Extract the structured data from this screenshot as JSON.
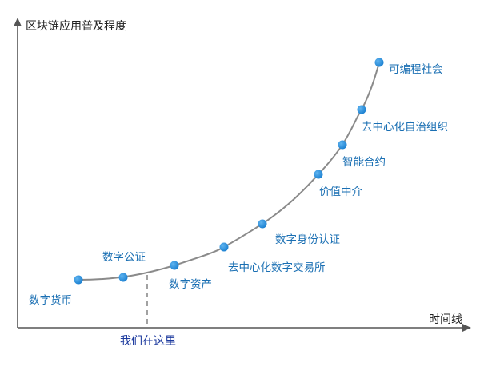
{
  "diagram": {
    "y_axis_title": "区块链应用普及程度",
    "x_axis_title": "时间线",
    "marker_label": "我们在这里",
    "colors": {
      "axis": "#555555",
      "curve": "#8a8a8a",
      "point": "#1a7fd0",
      "label": "#1a6fb3",
      "marker_label": "#1c3a9e",
      "marker_line": "#8a8a8a"
    },
    "stages": [
      {
        "label": "数字货币"
      },
      {
        "label": "数字公证"
      },
      {
        "label": "数字资产"
      },
      {
        "label": "去中心化数字交易所"
      },
      {
        "label": "数字身份认证"
      },
      {
        "label": "价值中介"
      },
      {
        "label": "智能合约"
      },
      {
        "label": "去中心化自治组织"
      },
      {
        "label": "可编程社会"
      }
    ]
  }
}
